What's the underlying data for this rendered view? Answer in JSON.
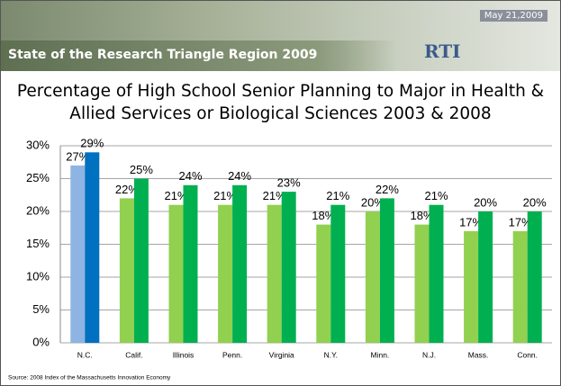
{
  "header": {
    "title": "State of the Research Triangle Region 2009",
    "date": "May 21,2009",
    "logo": "RTI"
  },
  "chart_data": {
    "type": "bar",
    "title": "Percentage of High School Senior Planning to Major in Health & Allied Services or Biological Sciences 2003 & 2008",
    "categories": [
      "N.C.",
      "Calif.",
      "Illinois",
      "Penn.",
      "Virginia",
      "N.Y.",
      "Minn.",
      "N.J.",
      "Mass.",
      "Conn."
    ],
    "series": [
      {
        "values": [
          27,
          22,
          21,
          21,
          21,
          18,
          20,
          18,
          17,
          17
        ],
        "value_labels": [
          "27%",
          "22%",
          "21%",
          "21%",
          "21%",
          "18%",
          "20%",
          "18%",
          "17%",
          "17%"
        ],
        "colors": [
          "#8db4e2",
          "#92d050",
          "#92d050",
          "#92d050",
          "#92d050",
          "#92d050",
          "#92d050",
          "#92d050",
          "#92d050",
          "#92d050"
        ]
      },
      {
        "values": [
          29,
          25,
          24,
          24,
          23,
          21,
          22,
          21,
          20,
          20
        ],
        "value_labels": [
          "29%",
          "25%",
          "24%",
          "24%",
          "23%",
          "21%",
          "22%",
          "21%",
          "20%",
          "20%"
        ],
        "colors": [
          "#0070c0",
          "#00b050",
          "#00b050",
          "#00b050",
          "#00b050",
          "#00b050",
          "#00b050",
          "#00b050",
          "#00b050",
          "#00b050"
        ]
      }
    ],
    "ylim": [
      0,
      30
    ],
    "yticks": [
      {
        "value": 0,
        "label": "0%"
      },
      {
        "value": 5,
        "label": "5%"
      },
      {
        "value": 10,
        "label": "10%"
      },
      {
        "value": 15,
        "label": "15%"
      },
      {
        "value": 20,
        "label": "20%"
      },
      {
        "value": 25,
        "label": "25%"
      },
      {
        "value": 30,
        "label": "30%"
      }
    ],
    "grid": true,
    "source": "Source: 2008 Index of the Massachusetts Innovation Economy"
  }
}
